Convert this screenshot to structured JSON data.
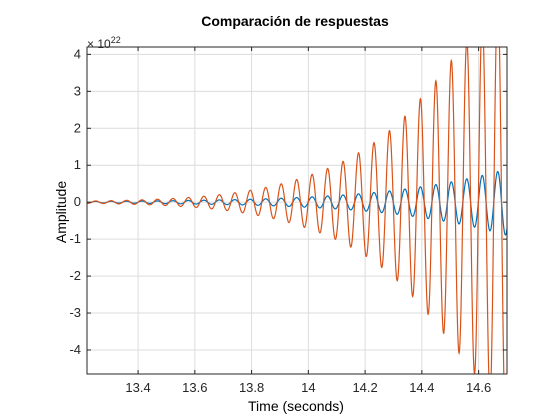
{
  "chart_data": {
    "type": "line",
    "title": "Comparación de respuestas",
    "xlabel": "Time (seconds)",
    "ylabel": "Amplitude",
    "y_exponent_base": "× 10",
    "y_exponent_power": "22",
    "xlim": [
      13.22,
      14.7
    ],
    "ylim": [
      -4.65,
      4.2
    ],
    "x_ticks": [
      13.4,
      13.6,
      13.8,
      14.0,
      14.2,
      14.4,
      14.6
    ],
    "x_tick_labels": [
      "13.4",
      "13.6",
      "13.8",
      "14",
      "14.2",
      "14.4",
      "14.6"
    ],
    "y_ticks": [
      -4,
      -3,
      -2,
      -1,
      0,
      1,
      2,
      3,
      4
    ],
    "y_tick_labels": [
      "-4",
      "-3",
      "-2",
      "-1",
      "0",
      "1",
      "2",
      "3",
      "4"
    ],
    "grid": true,
    "series": [
      {
        "color": "#0072BD",
        "oscillation_period": 0.0545,
        "envelope": {
          "x": [
            13.22,
            13.4,
            13.6,
            13.8,
            14.0,
            14.2,
            14.4,
            14.55,
            14.7
          ],
          "amplitude": [
            0.02,
            0.03,
            0.05,
            0.08,
            0.14,
            0.24,
            0.42,
            0.62,
            0.9
          ]
        }
      },
      {
        "color": "#D95319",
        "oscillation_period": 0.0545,
        "envelope": {
          "x": [
            13.22,
            13.4,
            13.6,
            13.8,
            14.0,
            14.2,
            14.4,
            14.5,
            14.6,
            14.7
          ],
          "amplitude": [
            0.03,
            0.06,
            0.14,
            0.33,
            0.72,
            1.45,
            2.85,
            3.8,
            4.8,
            6.0
          ]
        }
      }
    ]
  }
}
